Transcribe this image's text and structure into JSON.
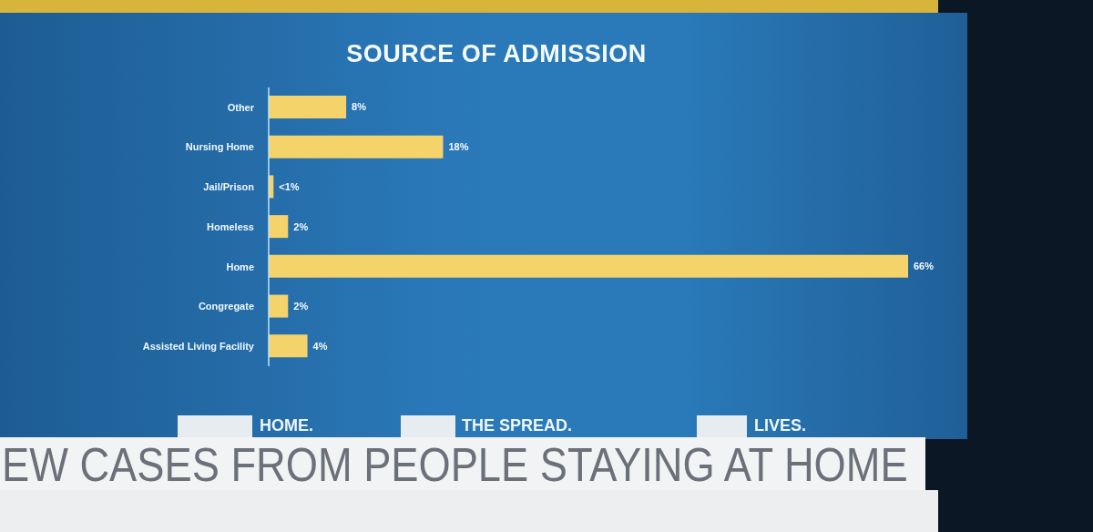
{
  "chart_data": {
    "type": "bar",
    "orientation": "horizontal",
    "title": "SOURCE OF ADMISSION",
    "categories": [
      "Other",
      "Nursing Home",
      "Jail/Prison",
      "Homeless",
      "Home",
      "Congregate",
      "Assisted Living Facility"
    ],
    "values": [
      8,
      18,
      0.5,
      2,
      66,
      2,
      4
    ],
    "color": "#f3d36a",
    "value_labels": [
      "8%",
      "18%",
      "<1%",
      "2%",
      "66%",
      "2%",
      "4%"
    ],
    "annotations": [
      "HOME.",
      "THE SPREAD.",
      "LIVES.",
      "EW CASES FROM PEOPLE STAYING AT HOME"
    ]
  }
}
